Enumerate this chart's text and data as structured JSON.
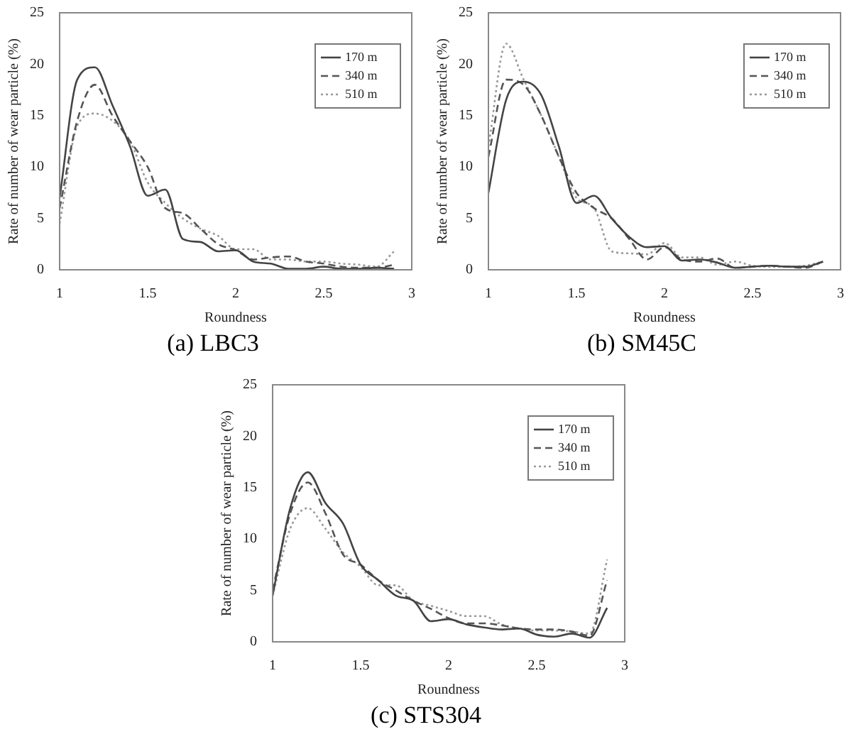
{
  "chart_data": [
    {
      "type": "line",
      "title": "(a) LBC3",
      "xlabel": "Roundness",
      "ylabel": "Rate of number of wear particle (%)",
      "xlim": [
        1,
        3
      ],
      "xticks": [
        1,
        1.5,
        2,
        2.5,
        3
      ],
      "ylim": [
        0,
        25
      ],
      "yticks": [
        0,
        5,
        10,
        15,
        20,
        25
      ],
      "grid": false,
      "legend": "top right",
      "marker": "none",
      "x": [
        1,
        1.1,
        1.2,
        1.3,
        1.4,
        1.5,
        1.6,
        1.7,
        1.8,
        1.9,
        2,
        2.1,
        2.2,
        2.3,
        2.4,
        2.5,
        2.6,
        2.7,
        2.8,
        2.9
      ],
      "series": [
        {
          "name": "170 m",
          "color": "#444444",
          "line_style": "solid",
          "values": [
            7,
            18.5,
            19.7,
            16,
            12,
            7.2,
            7.8,
            3,
            2.7,
            1.8,
            1.9,
            0.8,
            0.6,
            0.1,
            0.1,
            0.3,
            0.1,
            0.1,
            0.2,
            0.1
          ]
        },
        {
          "name": "340 m",
          "color": "#555555",
          "line_style": "dashed",
          "values": [
            6,
            14.5,
            18,
            15,
            12.5,
            10,
            6,
            5.5,
            4,
            2.5,
            1.9,
            1,
            1.2,
            1.3,
            0.8,
            0.6,
            0.3,
            0.2,
            0.2,
            0.5
          ]
        },
        {
          "name": "510 m",
          "color": "#999999",
          "line_style": "dotted",
          "values": [
            4.5,
            14,
            15.2,
            14.5,
            12.5,
            8.5,
            6.5,
            5,
            4,
            3.3,
            2,
            2,
            1,
            1,
            0.8,
            0.8,
            0.6,
            0.5,
            0.3,
            1.8
          ]
        }
      ]
    },
    {
      "type": "line",
      "title": "(b) SM45C",
      "xlabel": "Roundness",
      "ylabel": "Rate of number of wear particle (%)",
      "xlim": [
        1,
        3
      ],
      "xticks": [
        1,
        1.5,
        2,
        2.5,
        3
      ],
      "ylim": [
        0,
        25
      ],
      "yticks": [
        0,
        5,
        10,
        15,
        20,
        25
      ],
      "grid": false,
      "legend": "top right",
      "marker": "none",
      "x": [
        1,
        1.1,
        1.2,
        1.3,
        1.4,
        1.5,
        1.6,
        1.7,
        1.8,
        1.9,
        2,
        2.1,
        2.2,
        2.3,
        2.4,
        2.5,
        2.6,
        2.7,
        2.8,
        2.9
      ],
      "series": [
        {
          "name": "170 m",
          "color": "#444444",
          "line_style": "solid",
          "values": [
            7.5,
            16.5,
            18.3,
            17,
            12,
            6.5,
            7.2,
            5,
            3.2,
            2.2,
            2.3,
            0.9,
            1,
            0.7,
            0.2,
            0.3,
            0.4,
            0.3,
            0.3,
            0.8
          ]
        },
        {
          "name": "340 m",
          "color": "#555555",
          "line_style": "dashed",
          "values": [
            11,
            18.5,
            18,
            15,
            11,
            7.5,
            6,
            5,
            3,
            1,
            2.2,
            1,
            0.8,
            1.1,
            0.2,
            0.3,
            0.4,
            0.3,
            0.2,
            0.8
          ]
        },
        {
          "name": "510 m",
          "color": "#999999",
          "line_style": "dotted",
          "values": [
            12,
            22,
            18.5,
            15,
            11,
            7,
            6,
            1.8,
            1.6,
            1.5,
            2.6,
            1.2,
            1.2,
            0.5,
            0.8,
            0.4,
            0.3,
            0.3,
            0.4,
            0.8
          ]
        }
      ]
    },
    {
      "type": "line",
      "title": "(c) STS304",
      "xlabel": "Roundness",
      "ylabel": "Rate of number of wear particle (%)",
      "xlim": [
        1,
        3
      ],
      "xticks": [
        1,
        1.5,
        2,
        2.5,
        3
      ],
      "ylim": [
        0,
        25
      ],
      "yticks": [
        0,
        5,
        10,
        15,
        20,
        25
      ],
      "grid": false,
      "legend": "top right",
      "marker": "none",
      "x": [
        1,
        1.1,
        1.2,
        1.3,
        1.4,
        1.5,
        1.6,
        1.7,
        1.8,
        1.9,
        2,
        2.1,
        2.2,
        2.3,
        2.4,
        2.5,
        2.6,
        2.7,
        2.8,
        2.9
      ],
      "series": [
        {
          "name": "170 m",
          "color": "#444444",
          "line_style": "solid",
          "values": [
            4.5,
            13,
            16.5,
            13.5,
            11.5,
            7.5,
            6,
            4.5,
            4,
            2,
            2.2,
            1.7,
            1.4,
            1.2,
            1.3,
            0.7,
            0.5,
            0.8,
            0.4,
            3.3
          ]
        },
        {
          "name": "340 m",
          "color": "#555555",
          "line_style": "dashed",
          "values": [
            5,
            12.5,
            15.5,
            12.5,
            8.5,
            7.5,
            6,
            5,
            4,
            3.2,
            2.3,
            1.8,
            1.8,
            1.6,
            1.3,
            1.2,
            1.2,
            1,
            0.6,
            6
          ]
        },
        {
          "name": "510 m",
          "color": "#999999",
          "line_style": "dotted",
          "values": [
            4.5,
            11,
            13,
            11,
            8.7,
            7.3,
            5.5,
            5.5,
            4,
            3.5,
            3,
            2.5,
            2.5,
            1.7,
            1.3,
            1.1,
            1.1,
            1,
            0.8,
            8
          ]
        }
      ]
    }
  ]
}
